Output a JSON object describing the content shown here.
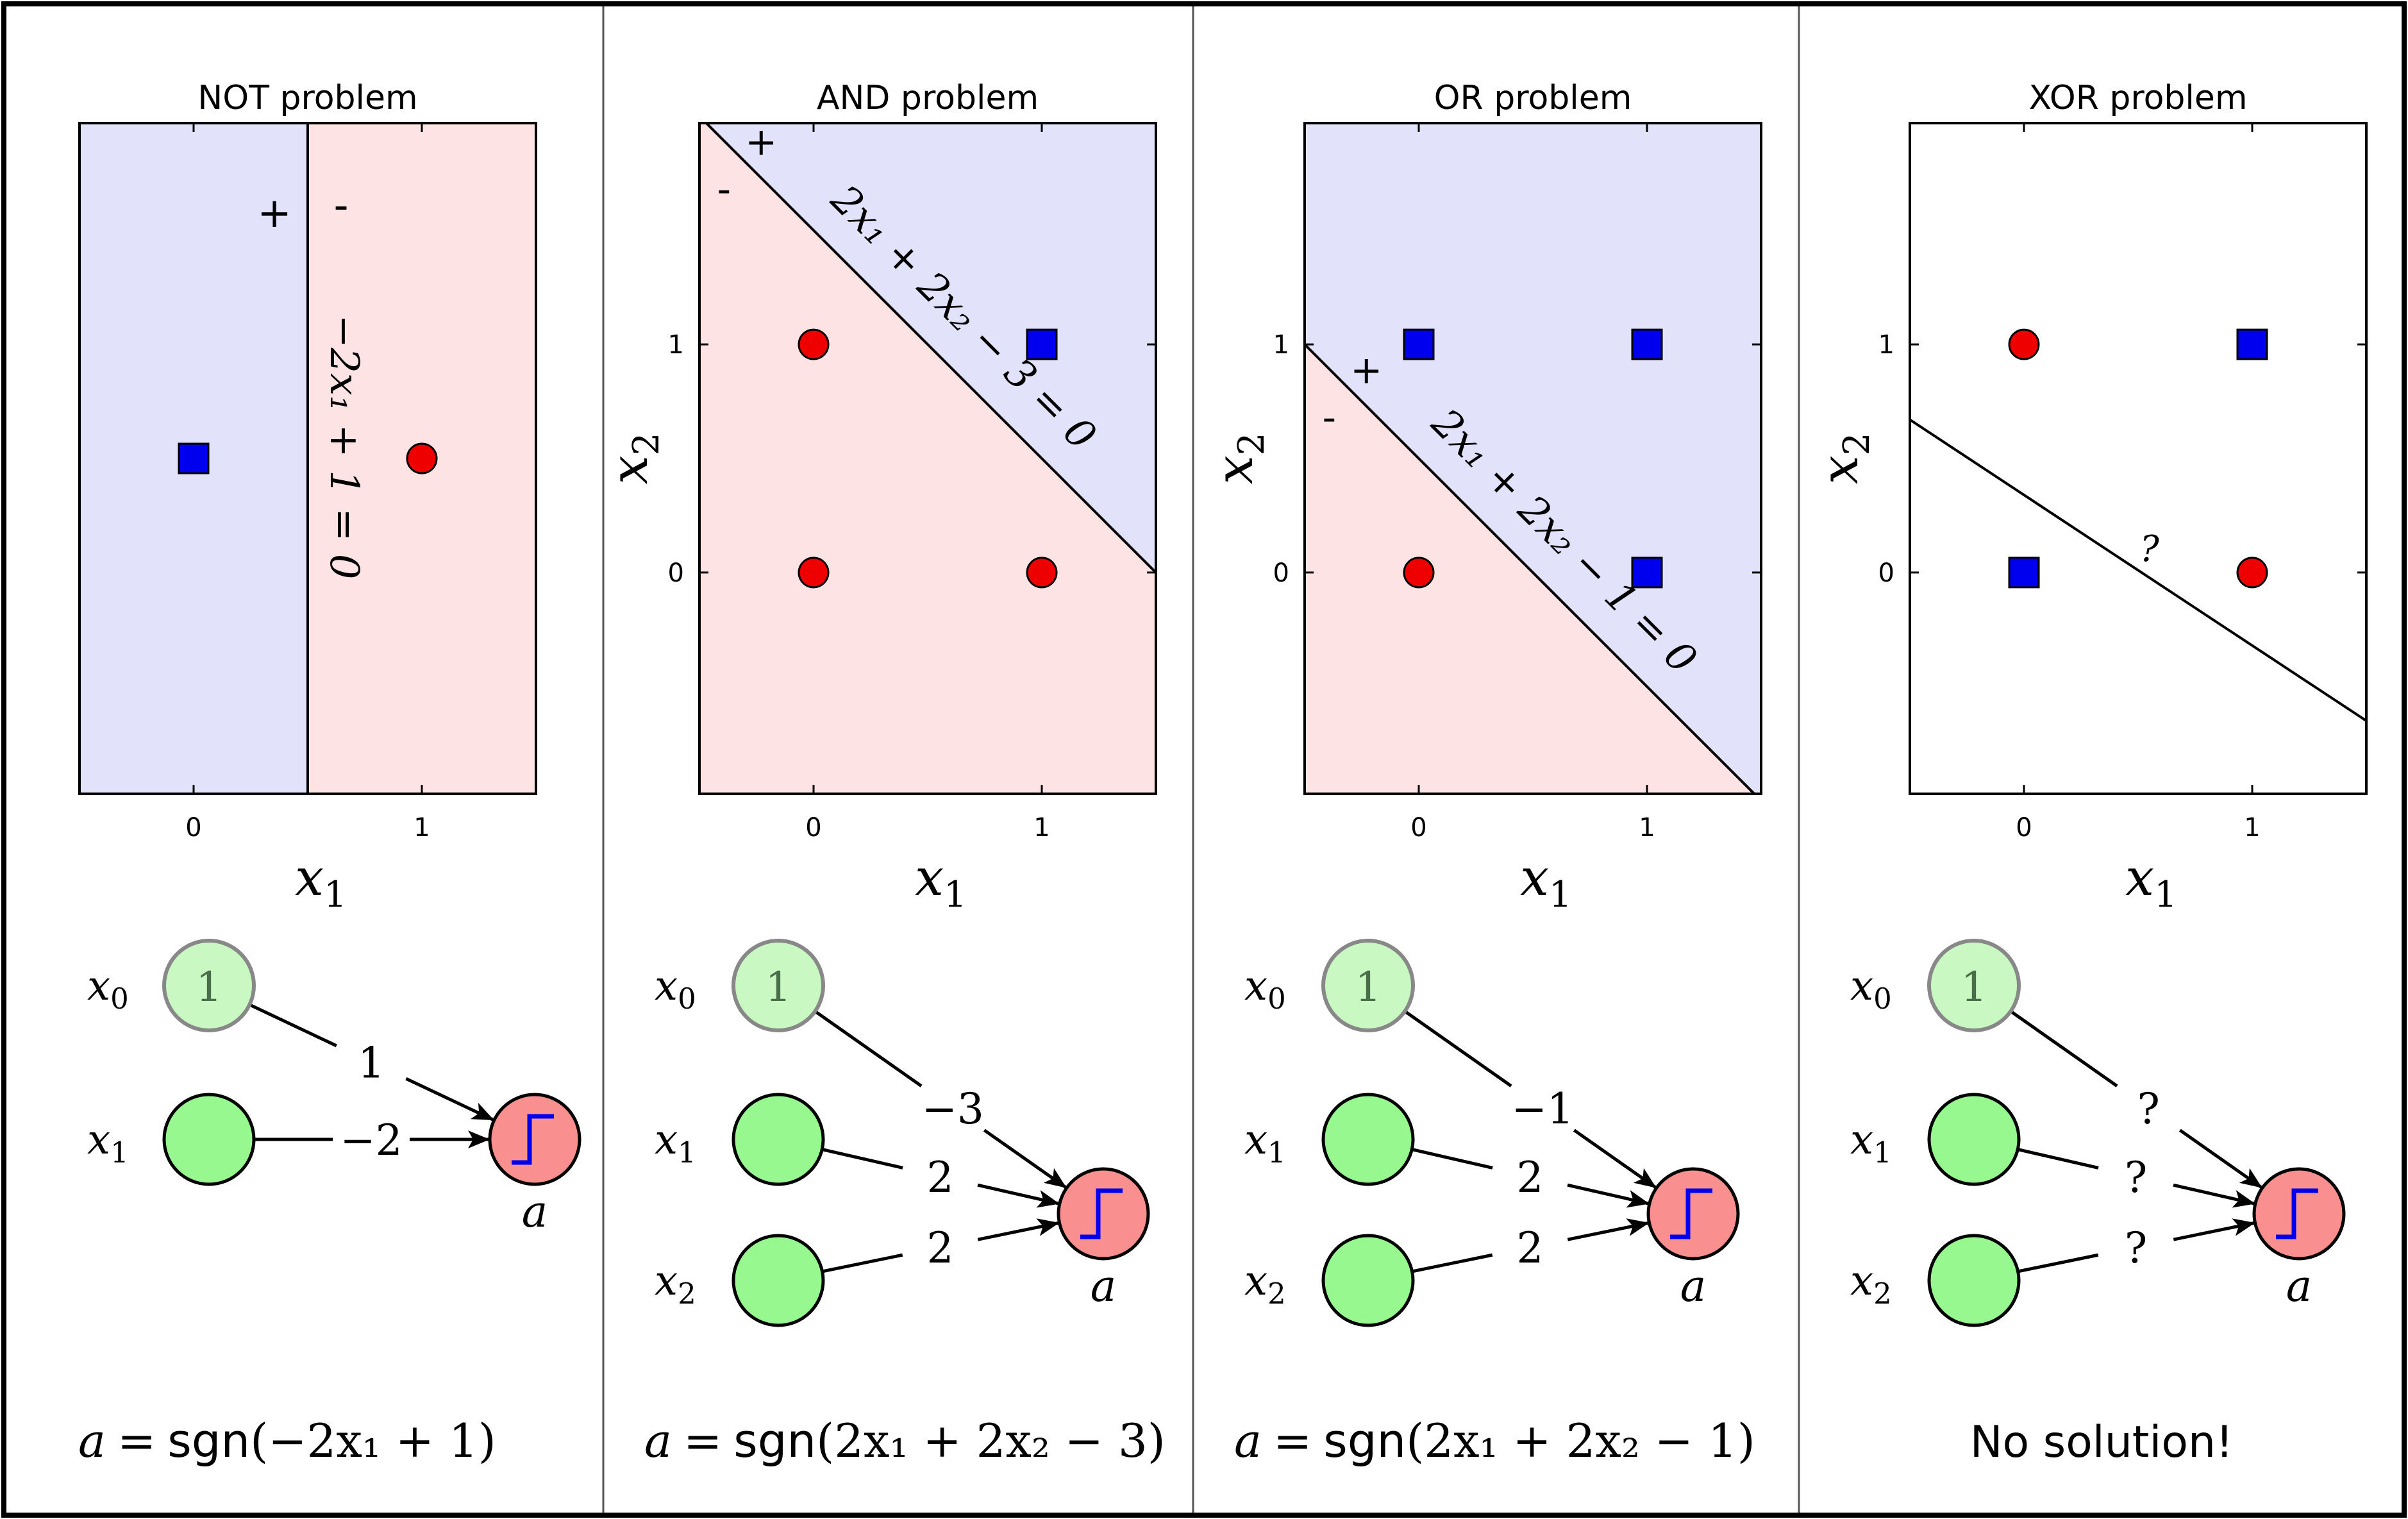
{
  "colors": {
    "positive_region": "#e2e2fb",
    "negative_region": "#fde3e3",
    "square": "#0000ee",
    "circle": "#ee0000",
    "bias_node_fill": "#c9f8c2",
    "bias_node_stroke": "#888888",
    "input_node_fill": "#98f890",
    "output_node_fill": "#f98f8f",
    "step_symbol": "#0000ee"
  },
  "icons": {
    "output_activation": "step-function-icon",
    "positive_class": "blue-square-marker",
    "negative_class": "red-circle-marker"
  },
  "panels": [
    {
      "title": "NOT problem",
      "xlabel": "x1",
      "ylabel": "",
      "xlim": [
        -0.5,
        1.5
      ],
      "ylim": [
        -0.5,
        1.5
      ],
      "xticks": [
        "0",
        "1"
      ],
      "yticks": [],
      "one_dimensional": true,
      "background_split": "vertical",
      "points": [
        {
          "x": 0,
          "y": 0.5,
          "marker": "square"
        },
        {
          "x": 1,
          "y": 0.5,
          "marker": "circle"
        }
      ],
      "boundary": {
        "kind": "vertical",
        "x": 0.5
      },
      "boundary_label": "−2x₁ + 1 = 0",
      "plus_label": "+",
      "minus_label": "-",
      "network": {
        "inputs": [
          {
            "label": "x0",
            "sub": "0",
            "bias": true,
            "node_text": "1",
            "weight": "1"
          },
          {
            "label": "x1",
            "sub": "1",
            "bias": false,
            "node_text": "",
            "weight": "−2"
          }
        ],
        "output_label": "a"
      },
      "formula": {
        "lhs": "a",
        "eq": "=",
        "fn": "sgn",
        "args": "(−2x₁ + 1)"
      }
    },
    {
      "title": "AND problem",
      "xlabel": "x1",
      "ylabel": "x2",
      "xlim": [
        -0.5,
        1.5
      ],
      "ylim": [
        -0.97,
        1.97
      ],
      "xticks": [
        "0",
        "1"
      ],
      "yticks": [
        "0",
        "1"
      ],
      "one_dimensional": false,
      "points": [
        {
          "x": 0,
          "y": 1,
          "marker": "circle"
        },
        {
          "x": 1,
          "y": 1,
          "marker": "square"
        },
        {
          "x": 0,
          "y": 0,
          "marker": "circle"
        },
        {
          "x": 1,
          "y": 0,
          "marker": "circle"
        }
      ],
      "boundary": {
        "kind": "line",
        "a": 2,
        "b": 2,
        "c": -3
      },
      "fill_regions": true,
      "boundary_label": "2x₁ + 2x₂ − 3 = 0",
      "plus_label": "+",
      "minus_label": "-",
      "network": {
        "inputs": [
          {
            "label": "x0",
            "sub": "0",
            "bias": true,
            "node_text": "1",
            "weight": "−3"
          },
          {
            "label": "x1",
            "sub": "1",
            "bias": false,
            "node_text": "",
            "weight": "2"
          },
          {
            "label": "x2",
            "sub": "2",
            "bias": false,
            "node_text": "",
            "weight": "2"
          }
        ],
        "output_label": "a"
      },
      "formula": {
        "lhs": "a",
        "eq": "=",
        "fn": "sgn",
        "args": "(2x₁ + 2x₂ − 3)"
      }
    },
    {
      "title": "OR problem",
      "xlabel": "x1",
      "ylabel": "x2",
      "xlim": [
        -0.5,
        1.5
      ],
      "ylim": [
        -0.97,
        1.97
      ],
      "xticks": [
        "0",
        "1"
      ],
      "yticks": [
        "0",
        "1"
      ],
      "one_dimensional": false,
      "points": [
        {
          "x": 0,
          "y": 1,
          "marker": "square"
        },
        {
          "x": 1,
          "y": 1,
          "marker": "square"
        },
        {
          "x": 0,
          "y": 0,
          "marker": "circle"
        },
        {
          "x": 1,
          "y": 0,
          "marker": "square"
        }
      ],
      "boundary": {
        "kind": "line",
        "a": 2,
        "b": 2,
        "c": -1
      },
      "fill_regions": true,
      "boundary_label": "2x₁ + 2x₂ − 1 = 0",
      "plus_label": "+",
      "minus_label": "-",
      "network": {
        "inputs": [
          {
            "label": "x0",
            "sub": "0",
            "bias": true,
            "node_text": "1",
            "weight": "−1"
          },
          {
            "label": "x1",
            "sub": "1",
            "bias": false,
            "node_text": "",
            "weight": "2"
          },
          {
            "label": "x2",
            "sub": "2",
            "bias": false,
            "node_text": "",
            "weight": "2"
          }
        ],
        "output_label": "a"
      },
      "formula": {
        "lhs": "a",
        "eq": "=",
        "fn": "sgn",
        "args": "(2x₁ + 2x₂ − 1)"
      }
    },
    {
      "title": "XOR problem",
      "xlabel": "x1",
      "ylabel": "x2",
      "xlim": [
        -0.5,
        1.5
      ],
      "ylim": [
        -0.97,
        1.97
      ],
      "xticks": [
        "0",
        "1"
      ],
      "yticks": [
        "0",
        "1"
      ],
      "one_dimensional": false,
      "points": [
        {
          "x": 0,
          "y": 1,
          "marker": "circle"
        },
        {
          "x": 1,
          "y": 1,
          "marker": "square"
        },
        {
          "x": 0,
          "y": 0,
          "marker": "square"
        },
        {
          "x": 1,
          "y": 0,
          "marker": "circle"
        }
      ],
      "boundary": {
        "kind": "segment",
        "from": [
          -0.5,
          0.67
        ],
        "to": [
          1.5,
          -0.65
        ]
      },
      "fill_regions": false,
      "boundary_label": "?",
      "plus_label": "",
      "minus_label": "",
      "network": {
        "inputs": [
          {
            "label": "x0",
            "sub": "0",
            "bias": true,
            "node_text": "1",
            "weight": "?"
          },
          {
            "label": "x1",
            "sub": "1",
            "bias": false,
            "node_text": "",
            "weight": "?"
          },
          {
            "label": "x2",
            "sub": "2",
            "bias": false,
            "node_text": "",
            "weight": "?"
          }
        ],
        "output_label": "a"
      },
      "formula": {
        "text": "No solution!"
      }
    }
  ]
}
